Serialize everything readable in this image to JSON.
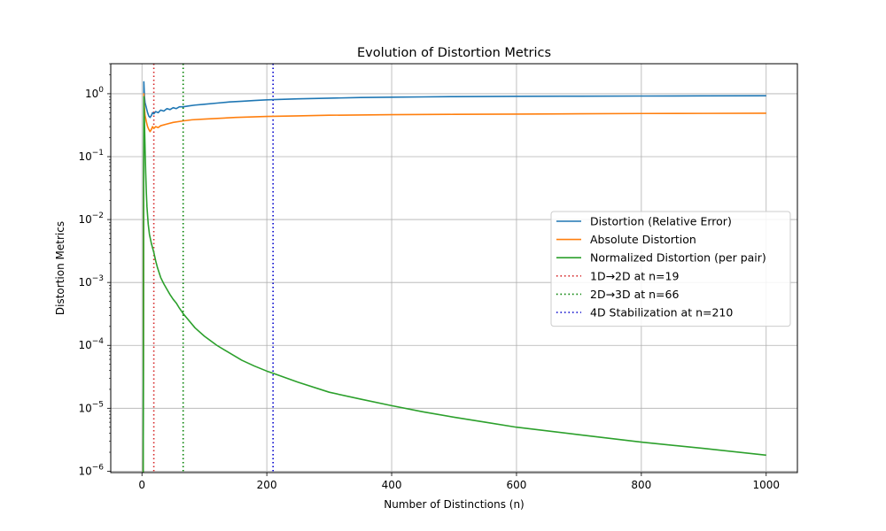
{
  "chart_data": {
    "type": "line",
    "title": "Evolution of Distortion Metrics",
    "xlabel": "Number of Distinctions (n)",
    "ylabel": "Distortion Metrics",
    "xlim": [
      -50,
      1050
    ],
    "ylim": [
      9.5e-07,
      3.0
    ],
    "yscale": "log",
    "grid": true,
    "legend_position": "center-right",
    "x_ticks": [
      {
        "value": 0,
        "label": "0"
      },
      {
        "value": 200,
        "label": "200"
      },
      {
        "value": 400,
        "label": "400"
      },
      {
        "value": 600,
        "label": "600"
      },
      {
        "value": 800,
        "label": "800"
      },
      {
        "value": 1000,
        "label": "1000"
      }
    ],
    "y_ticks": [
      {
        "value": 1,
        "base": "10",
        "exp": "0"
      },
      {
        "value": 0.1,
        "base": "10",
        "exp": "−1"
      },
      {
        "value": 0.01,
        "base": "10",
        "exp": "−2"
      },
      {
        "value": 0.001,
        "base": "10",
        "exp": "−3"
      },
      {
        "value": 0.0001,
        "base": "10",
        "exp": "−4"
      },
      {
        "value": 1e-05,
        "base": "10",
        "exp": "−5"
      },
      {
        "value": 1e-06,
        "base": "10",
        "exp": "−6"
      }
    ],
    "series": [
      {
        "name": "Distortion (Relative Error)",
        "color": "#1f77b4",
        "style": "solid",
        "points": [
          [
            2,
            5e-07
          ],
          [
            3,
            1.55
          ],
          [
            4,
            0.9
          ],
          [
            5,
            0.72
          ],
          [
            7,
            0.6
          ],
          [
            9,
            0.5
          ],
          [
            11,
            0.44
          ],
          [
            13,
            0.42
          ],
          [
            15,
            0.45
          ],
          [
            17,
            0.5
          ],
          [
            19,
            0.48
          ],
          [
            22,
            0.52
          ],
          [
            26,
            0.5
          ],
          [
            30,
            0.55
          ],
          [
            35,
            0.53
          ],
          [
            40,
            0.58
          ],
          [
            45,
            0.56
          ],
          [
            50,
            0.6
          ],
          [
            55,
            0.58
          ],
          [
            60,
            0.62
          ],
          [
            66,
            0.62
          ],
          [
            75,
            0.64
          ],
          [
            85,
            0.66
          ],
          [
            100,
            0.68
          ],
          [
            120,
            0.71
          ],
          [
            140,
            0.74
          ],
          [
            160,
            0.76
          ],
          [
            180,
            0.78
          ],
          [
            200,
            0.8
          ],
          [
            250,
            0.83
          ],
          [
            300,
            0.85
          ],
          [
            350,
            0.87
          ],
          [
            400,
            0.88
          ],
          [
            450,
            0.89
          ],
          [
            500,
            0.9
          ],
          [
            600,
            0.91
          ],
          [
            700,
            0.915
          ],
          [
            800,
            0.92
          ],
          [
            900,
            0.925
          ],
          [
            1000,
            0.93
          ]
        ]
      },
      {
        "name": "Absolute Distortion",
        "color": "#ff7f0e",
        "style": "solid",
        "points": [
          [
            2,
            5e-07
          ],
          [
            3,
            1.0
          ],
          [
            4,
            0.6
          ],
          [
            5,
            0.45
          ],
          [
            7,
            0.36
          ],
          [
            9,
            0.3
          ],
          [
            11,
            0.27
          ],
          [
            13,
            0.25
          ],
          [
            15,
            0.27
          ],
          [
            17,
            0.3
          ],
          [
            19,
            0.28
          ],
          [
            22,
            0.3
          ],
          [
            26,
            0.29
          ],
          [
            30,
            0.31
          ],
          [
            40,
            0.33
          ],
          [
            50,
            0.35
          ],
          [
            66,
            0.37
          ],
          [
            80,
            0.385
          ],
          [
            100,
            0.395
          ],
          [
            150,
            0.42
          ],
          [
            200,
            0.435
          ],
          [
            250,
            0.445
          ],
          [
            300,
            0.455
          ],
          [
            400,
            0.465
          ],
          [
            500,
            0.47
          ],
          [
            600,
            0.475
          ],
          [
            700,
            0.48
          ],
          [
            800,
            0.485
          ],
          [
            900,
            0.487
          ],
          [
            1000,
            0.49
          ]
        ]
      },
      {
        "name": "Normalized Distortion (per pair)",
        "color": "#2ca02c",
        "style": "solid",
        "points": [
          [
            2,
            5e-07
          ],
          [
            3,
            0.9
          ],
          [
            4,
            0.35
          ],
          [
            5,
            0.13
          ],
          [
            6,
            0.055
          ],
          [
            7,
            0.027
          ],
          [
            8,
            0.016
          ],
          [
            10,
            0.0085
          ],
          [
            12,
            0.0058
          ],
          [
            15,
            0.0042
          ],
          [
            19,
            0.003
          ],
          [
            22,
            0.0022
          ],
          [
            25,
            0.0017
          ],
          [
            30,
            0.0012
          ],
          [
            35,
            0.00095
          ],
          [
            40,
            0.00078
          ],
          [
            45,
            0.00064
          ],
          [
            50,
            0.00054
          ],
          [
            55,
            0.00047
          ],
          [
            60,
            0.00039
          ],
          [
            66,
            0.00032
          ],
          [
            75,
            0.00025
          ],
          [
            85,
            0.00019
          ],
          [
            100,
            0.00014
          ],
          [
            120,
            0.0001
          ],
          [
            140,
            7.6e-05
          ],
          [
            160,
            5.8e-05
          ],
          [
            180,
            4.7e-05
          ],
          [
            200,
            3.9e-05
          ],
          [
            210,
            3.6e-05
          ],
          [
            250,
            2.6e-05
          ],
          [
            300,
            1.8e-05
          ],
          [
            350,
            1.4e-05
          ],
          [
            400,
            1.1e-05
          ],
          [
            450,
            8.8e-06
          ],
          [
            500,
            7.2e-06
          ],
          [
            550,
            6e-06
          ],
          [
            600,
            5e-06
          ],
          [
            700,
            3.8e-06
          ],
          [
            800,
            2.9e-06
          ],
          [
            900,
            2.3e-06
          ],
          [
            1000,
            1.8e-06
          ]
        ]
      }
    ],
    "vlines": [
      {
        "name": "1D→2D at n=19",
        "x": 19,
        "color": "#d62728",
        "style": "dotted"
      },
      {
        "name": "2D→3D at n=66",
        "x": 66,
        "color": "#008000",
        "style": "dotted"
      },
      {
        "name": "4D Stabilization at n=210",
        "x": 210,
        "color": "#0000cc",
        "style": "dotted"
      }
    ]
  }
}
